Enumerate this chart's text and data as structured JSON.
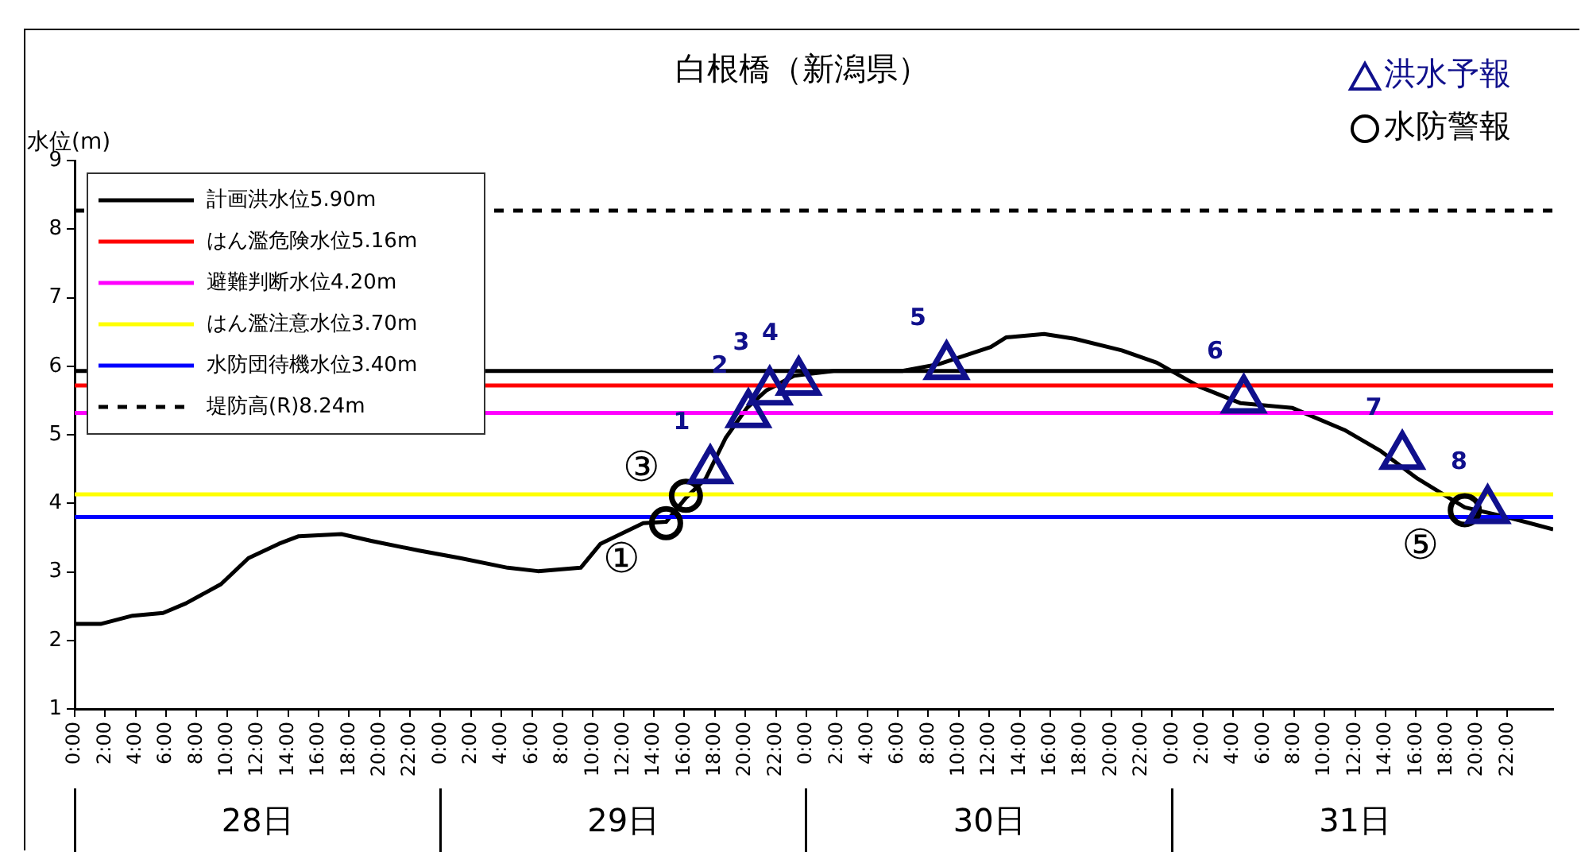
{
  "chart_data": {
    "type": "line",
    "title": "白根橋（新潟県）",
    "ylabel": "水位(m)",
    "legend": "top left",
    "marker": "none",
    "xlim": [
      "--07-28T00:00",
      "--08-01T01:00"
    ],
    "ylim": [
      1,
      9
    ],
    "yticks": [
      1,
      2,
      3,
      4,
      5,
      6,
      7,
      8,
      9
    ],
    "xticks": [
      {
        "value": "--07-28T00:00",
        "label": "0:00"
      },
      {
        "value": "--07-28T02:00",
        "label": "2:00"
      },
      {
        "value": "--07-28T04:00",
        "label": "4:00"
      },
      {
        "value": "--07-28T06:00",
        "label": "6:00"
      },
      {
        "value": "--07-28T08:00",
        "label": "8:00"
      },
      {
        "value": "--07-28T10:00",
        "label": "10:00"
      },
      {
        "value": "--07-28T12:00",
        "label": "12:00"
      },
      {
        "value": "--07-28T14:00",
        "label": "14:00"
      },
      {
        "value": "--07-28T16:00",
        "label": "16:00"
      },
      {
        "value": "--07-28T18:00",
        "label": "18:00"
      },
      {
        "value": "--07-28T20:00",
        "label": "20:00"
      },
      {
        "value": "--07-28T22:00",
        "label": "22:00"
      },
      {
        "value": "--07-29T00:00",
        "label": "0:00"
      },
      {
        "value": "--07-29T02:00",
        "label": "2:00"
      },
      {
        "value": "--07-29T04:00",
        "label": "4:00"
      },
      {
        "value": "--07-29T06:00",
        "label": "6:00"
      },
      {
        "value": "--07-29T08:00",
        "label": "8:00"
      },
      {
        "value": "--07-29T10:00",
        "label": "10:00"
      },
      {
        "value": "--07-29T12:00",
        "label": "12:00"
      },
      {
        "value": "--07-29T14:00",
        "label": "14:00"
      },
      {
        "value": "--07-29T16:00",
        "label": "16:00"
      },
      {
        "value": "--07-29T18:00",
        "label": "18:00"
      },
      {
        "value": "--07-29T20:00",
        "label": "20:00"
      },
      {
        "value": "--07-29T22:00",
        "label": "22:00"
      },
      {
        "value": "--07-30T00:00",
        "label": "0:00"
      },
      {
        "value": "--07-30T02:00",
        "label": "2:00"
      },
      {
        "value": "--07-30T04:00",
        "label": "4:00"
      },
      {
        "value": "--07-30T06:00",
        "label": "6:00"
      },
      {
        "value": "--07-30T08:00",
        "label": "8:00"
      },
      {
        "value": "--07-30T10:00",
        "label": "10:00"
      },
      {
        "value": "--07-30T12:00",
        "label": "12:00"
      },
      {
        "value": "--07-30T14:00",
        "label": "14:00"
      },
      {
        "value": "--07-30T16:00",
        "label": "16:00"
      },
      {
        "value": "--07-30T18:00",
        "label": "18:00"
      },
      {
        "value": "--07-30T20:00",
        "label": "20:00"
      },
      {
        "value": "--07-30T22:00",
        "label": "22:00"
      },
      {
        "value": "--07-31T00:00",
        "label": "0:00"
      },
      {
        "value": "--07-31T02:00",
        "label": "2:00"
      },
      {
        "value": "--07-31T04:00",
        "label": "4:00"
      },
      {
        "value": "--07-31T06:00",
        "label": "6:00"
      },
      {
        "value": "--07-31T08:00",
        "label": "8:00"
      },
      {
        "value": "--07-31T10:00",
        "label": "10:00"
      },
      {
        "value": "--07-31T12:00",
        "label": "12:00"
      },
      {
        "value": "--07-31T14:00",
        "label": "14:00"
      },
      {
        "value": "--07-31T16:00",
        "label": "16:00"
      },
      {
        "value": "--07-31T18:00",
        "label": "18:00"
      },
      {
        "value": "--07-31T20:00",
        "label": "20:00"
      },
      {
        "value": "--07-31T22:00",
        "label": "22:00"
      }
    ],
    "x2lim": [
      "--07-28T00:00",
      "--08-01T01:00"
    ],
    "x2ticks": [
      {
        "value": "--07-28T00:00",
        "label": null
      },
      {
        "value": "--07-28T12:00",
        "label": "28日"
      },
      {
        "value": "--07-29T00:00",
        "label": null
      },
      {
        "value": "--07-29T12:00",
        "label": "29日"
      },
      {
        "value": "--07-30T00:00",
        "label": null
      },
      {
        "value": "--07-30T12:00",
        "label": "30日"
      },
      {
        "value": "--07-31T00:00",
        "label": null
      },
      {
        "value": "--07-31T12:00",
        "label": "31日"
      }
    ],
    "series": [
      {
        "name": "計画洪水位5.90m",
        "color": "#000000",
        "x": [
          "--07-28T00:00",
          "--08-01T01:00"
        ],
        "values": [
          5.93,
          5.93
        ]
      },
      {
        "name": "はん濫危険水位5.16m",
        "color": "#ff0000",
        "x": [
          "--07-28T00:00",
          "--08-01T01:00"
        ],
        "values": [
          5.72,
          5.72
        ]
      },
      {
        "name": "避難判断水位4.20m",
        "color": "#ff00ff",
        "x": [
          "--07-28T00:00",
          "--08-01T01:00"
        ],
        "values": [
          5.32,
          5.32
        ]
      },
      {
        "name": "はん濫注意水位3.70m",
        "color": "#ffff00",
        "x": [
          "--07-28T00:00",
          "--08-01T01:00"
        ],
        "values": [
          4.13,
          4.13
        ]
      },
      {
        "name": "水防団待機水位3.40m",
        "color": "#0000ff",
        "x": [
          "--07-28T00:00",
          "--08-01T01:00"
        ],
        "values": [
          3.8,
          3.8
        ]
      },
      {
        "name": "堤防高(R)8.24m",
        "color": "#000000",
        "line_style": "dashed",
        "x": [
          "--07-28T00:00",
          "--08-01T01:00"
        ],
        "values": [
          8.27,
          8.27
        ]
      },
      {
        "color": "#000000",
        "x": [
          "--07-28T00:00",
          "--07-28T01:42",
          "--07-28T03:48",
          "--07-28T05:48",
          "--07-28T07:18",
          "--07-28T09:36",
          "--07-28T11:24",
          "--07-28T13:24",
          "--07-28T14:42",
          "--07-28T17:30",
          "--07-28T19:30",
          "--07-28T22:36",
          "--07-29T01:18",
          "--07-29T04:24",
          "--07-29T06:24",
          "--07-29T09:12",
          "--07-29T10:30",
          "--07-29T13:18",
          "--07-29T14:48",
          "--07-29T16:06",
          "--07-29T17:24",
          "--07-29T18:42",
          "--07-29T20:06",
          "--07-29T21:24",
          "--07-29T23:12",
          "--07-30T01:48",
          "--07-30T06:18",
          "--07-30T08:42",
          "--07-30T12:06",
          "--07-30T13:06",
          "--07-30T15:36",
          "--07-30T17:36",
          "--07-30T20:42",
          "--07-30T23:00",
          "--07-31T01:48",
          "--07-31T04:30",
          "--07-31T07:54",
          "--07-31T11:18",
          "--07-31T13:42",
          "--07-31T16:06",
          "--07-31T17:48",
          "--07-31T19:12",
          "--07-31T22:18",
          "--08-01T01:00"
        ],
        "values": [
          2.24,
          2.24,
          2.36,
          2.4,
          2.54,
          2.82,
          3.2,
          3.41,
          3.52,
          3.55,
          3.45,
          3.31,
          3.2,
          3.06,
          3.01,
          3.06,
          3.41,
          3.71,
          3.73,
          4.08,
          4.36,
          4.95,
          5.39,
          5.65,
          5.86,
          5.93,
          5.93,
          6.03,
          6.28,
          6.42,
          6.47,
          6.4,
          6.23,
          6.05,
          5.7,
          5.46,
          5.39,
          5.07,
          4.76,
          4.36,
          4.13,
          3.94,
          3.78,
          3.62
        ]
      },
      {
        "name": "洪水予報",
        "type": "scatter",
        "marker": "triangle",
        "color": "#10108c",
        "x": [
          "--07-29T17:42",
          "--07-29T20:12",
          "--07-29T21:36",
          "--07-29T23:30",
          "--07-30T09:12",
          "--07-31T04:42",
          "--07-31T15:06",
          "--07-31T20:42"
        ],
        "values": [
          4.48,
          5.3,
          5.63,
          5.77,
          6.0,
          5.51,
          4.69,
          3.9
        ]
      },
      {
        "name": "水防警報",
        "type": "scatter",
        "marker": "circle",
        "color": "#000000",
        "x": [
          "--07-29T14:48",
          "--07-29T16:06",
          "--07-31T19:12"
        ],
        "values": [
          3.71,
          4.11,
          3.9
        ]
      }
    ],
    "annotations": [
      {
        "text": "1",
        "x": "--07-29T17:42",
        "y": 4.48
      },
      {
        "text": "2",
        "x": "--07-29T20:12",
        "y": 5.3
      },
      {
        "text": "3",
        "x": "--07-29T21:36",
        "y": 5.63
      },
      {
        "text": "4",
        "x": "--07-29T23:30",
        "y": 5.77
      },
      {
        "text": "5",
        "x": "--07-30T09:12",
        "y": 6.0
      },
      {
        "text": "6",
        "x": "--07-31T04:42",
        "y": 5.51
      },
      {
        "text": "7",
        "x": "--07-31T15:06",
        "y": 4.69
      },
      {
        "text": "8",
        "x": "--07-31T20:42",
        "y": 3.9
      },
      {
        "text": "①",
        "x": "--07-29T14:48",
        "y": 3.71
      },
      {
        "text": "③",
        "x": "--07-29T16:06",
        "y": 4.11
      },
      {
        "text": "⑤",
        "x": "--07-31T19:12",
        "y": 3.9
      }
    ]
  }
}
